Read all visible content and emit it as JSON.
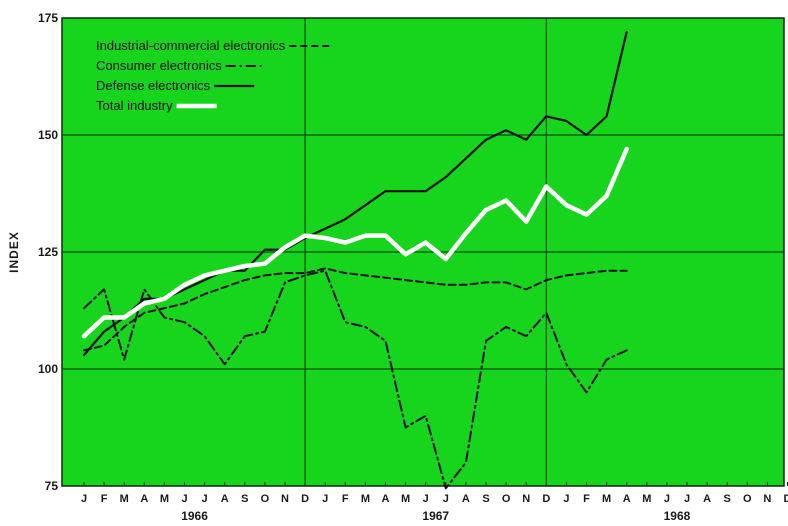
{
  "chart_data": {
    "type": "line",
    "ylabel": "INDEX",
    "xlabel": "",
    "ylim": [
      75,
      175
    ],
    "yticks": [
      75,
      100,
      125,
      150,
      175
    ],
    "ytick_labels": [
      "75",
      "100",
      "125",
      "150",
      "175"
    ],
    "month_labels": [
      "J",
      "F",
      "M",
      "A",
      "M",
      "J",
      "J",
      "A",
      "S",
      "O",
      "N",
      "D",
      "J",
      "F",
      "M",
      "A",
      "M",
      "J",
      "J",
      "A",
      "S",
      "O",
      "N",
      "D",
      "J",
      "F",
      "M",
      "A",
      "M",
      "J",
      "J",
      "A",
      "S",
      "O",
      "N",
      "D"
    ],
    "year_labels": [
      "1966",
      "1967",
      "1968"
    ],
    "grid": true,
    "legend_placement": "top-left",
    "background_color": "#17d41c",
    "series": [
      {
        "name": "Industrial-commercial electronics",
        "style": "dashed",
        "color": "#111111",
        "values": [
          104,
          105,
          109,
          112,
          113,
          114,
          116,
          117.5,
          119,
          120,
          120.5,
          120.5,
          121.5,
          120.5,
          120,
          119.5,
          119,
          118.5,
          118,
          118,
          118.5,
          118.5,
          117,
          119,
          120,
          120.5,
          121,
          121
        ]
      },
      {
        "name": "Consumer electronics",
        "style": "dash-dot",
        "color": "#111111",
        "values": [
          113,
          117,
          102,
          117,
          111,
          110,
          107,
          101,
          107,
          108,
          118.5,
          120,
          121,
          110,
          109,
          106,
          87.5,
          90,
          74.5,
          80,
          106,
          109,
          107,
          112,
          101,
          95,
          102,
          104
        ]
      },
      {
        "name": "Defense electronics",
        "style": "solid",
        "color": "#111111",
        "values": [
          103,
          108,
          111,
          115,
          115,
          117,
          119,
          121,
          121,
          125.5,
          125.5,
          128,
          130,
          132,
          135,
          138,
          138,
          138,
          141,
          145,
          149,
          151,
          149,
          154,
          153,
          150,
          154,
          172
        ]
      },
      {
        "name": "Total industry",
        "style": "solid-thick",
        "color": "#ffffff",
        "values": [
          107,
          111,
          111,
          114,
          115,
          118,
          120,
          121,
          122,
          122.5,
          126,
          128.5,
          128,
          127,
          128.5,
          128.5,
          124.5,
          127,
          123.5,
          129,
          134,
          136,
          131.5,
          139,
          135,
          133,
          137,
          147
        ]
      }
    ]
  }
}
